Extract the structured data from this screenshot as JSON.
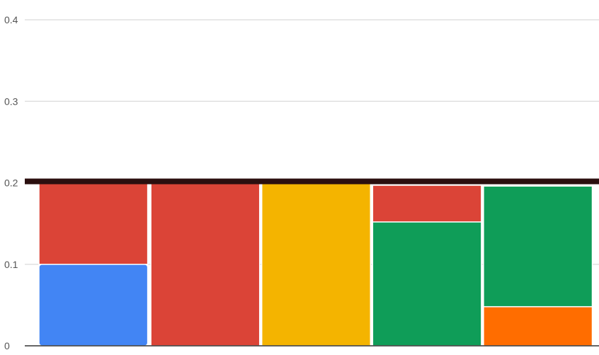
{
  "chart_data": {
    "type": "bar",
    "stacked": true,
    "ylim": [
      0,
      0.4
    ],
    "yticks": [
      {
        "value": 0,
        "label": "0"
      },
      {
        "value": 0.1,
        "label": "0.1"
      },
      {
        "value": 0.2,
        "label": "0.2"
      },
      {
        "value": 0.3,
        "label": "0.3"
      },
      {
        "value": 0.4,
        "label": "0.4"
      }
    ],
    "grid": true,
    "legend": "none",
    "reference_line": {
      "value": 0.2,
      "color": "#2b0f0f"
    },
    "columns": [
      {
        "segments": [
          {
            "value": 0.1,
            "color": "#4285f4"
          },
          {
            "value": 0.1,
            "color": "#db4437"
          }
        ]
      },
      {
        "segments": [
          {
            "value": 0.205,
            "color": "#db4437"
          }
        ]
      },
      {
        "segments": [
          {
            "value": 0.2,
            "color": "#f4b400"
          }
        ]
      },
      {
        "segments": [
          {
            "value": 0.152,
            "color": "#0f9d58"
          },
          {
            "value": 0.045,
            "color": "#db4437"
          }
        ]
      },
      {
        "segments": [
          {
            "value": 0.048,
            "color": "#ff6d00"
          },
          {
            "value": 0.148,
            "color": "#0f9d58"
          }
        ]
      }
    ]
  }
}
